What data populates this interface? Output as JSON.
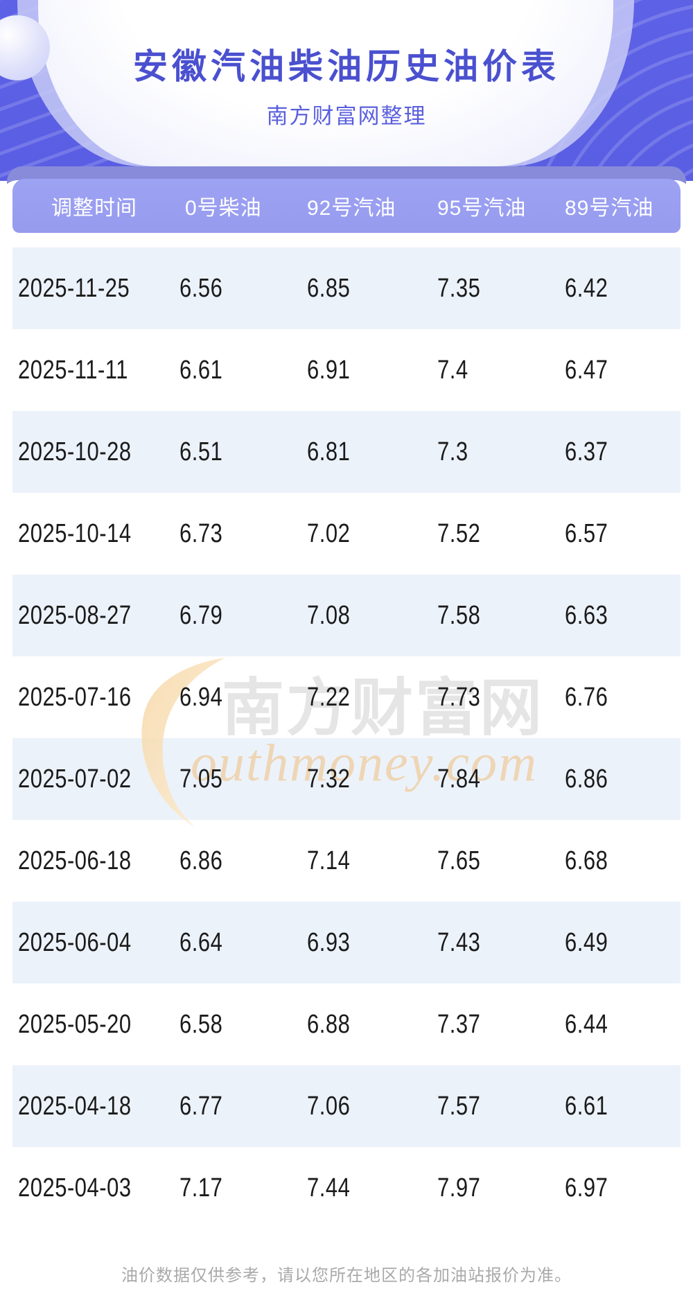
{
  "header": {
    "title": "安徽汽油柴油历史油价表",
    "subtitle": "南方财富网整理"
  },
  "watermark": {
    "brand_cn": "南方财富网",
    "brand_en": "outhmoney.com"
  },
  "footer": {
    "disclaimer": "油价数据仅供参考，请以您所在地区的各加油站报价为准。"
  },
  "colors": {
    "hero_purple": "#5a5ee3",
    "header_band_purple": "#9aa0f1",
    "backdrop_bar_purple": "#878bda",
    "row_alt_blue": "#ecf2fa",
    "title_indigo": "#4a50cf",
    "watermark_orange": "#f2b269"
  },
  "chart_data": {
    "type": "table",
    "title": "安徽汽油柴油历史油价表",
    "columns": [
      "调整时间",
      "0号柴油",
      "92号汽油",
      "95号汽油",
      "89号汽油"
    ],
    "rows": [
      [
        "2025-11-25",
        6.56,
        6.85,
        7.35,
        6.42
      ],
      [
        "2025-11-11",
        6.61,
        6.91,
        7.4,
        6.47
      ],
      [
        "2025-10-28",
        6.51,
        6.81,
        7.3,
        6.37
      ],
      [
        "2025-10-14",
        6.73,
        7.02,
        7.52,
        6.57
      ],
      [
        "2025-08-27",
        6.79,
        7.08,
        7.58,
        6.63
      ],
      [
        "2025-07-16",
        6.94,
        7.22,
        7.73,
        6.76
      ],
      [
        "2025-07-02",
        7.05,
        7.32,
        7.84,
        6.86
      ],
      [
        "2025-06-18",
        6.86,
        7.14,
        7.65,
        6.68
      ],
      [
        "2025-06-04",
        6.64,
        6.93,
        7.43,
        6.49
      ],
      [
        "2025-05-20",
        6.58,
        6.88,
        7.37,
        6.44
      ],
      [
        "2025-04-18",
        6.77,
        7.06,
        7.57,
        6.61
      ],
      [
        "2025-04-03",
        7.17,
        7.44,
        7.97,
        6.97
      ]
    ]
  }
}
